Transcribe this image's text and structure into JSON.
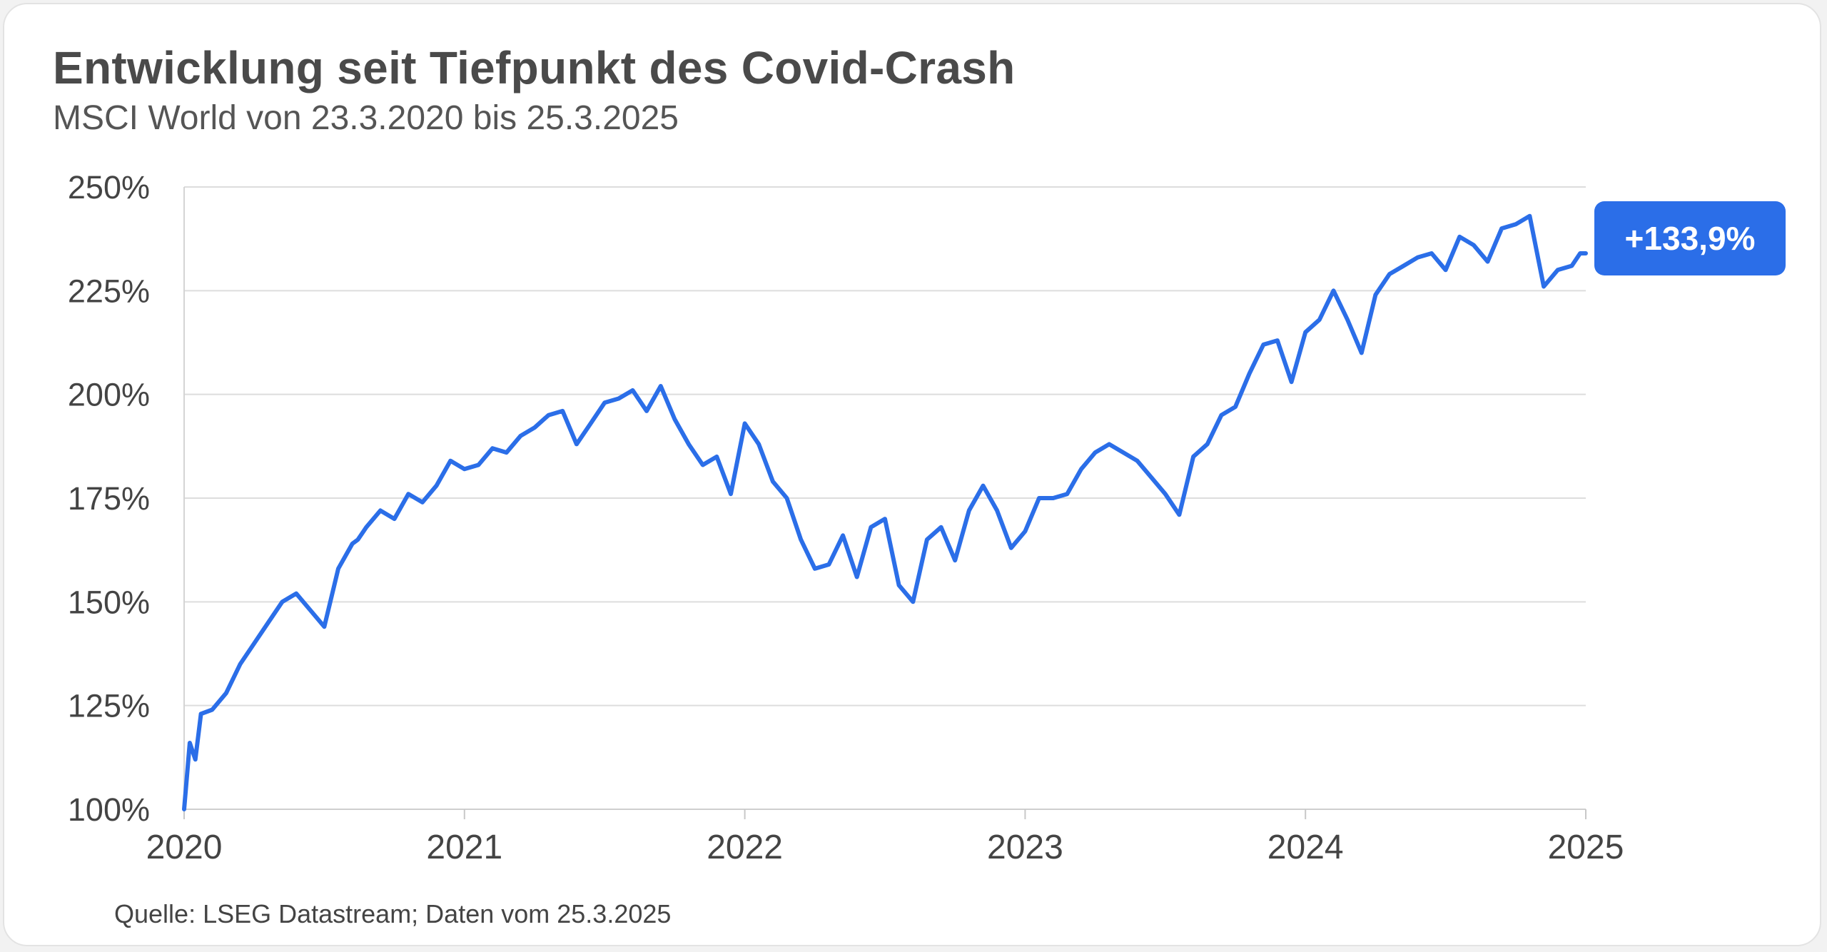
{
  "colors": {
    "line": "#2b6ee8",
    "callout_bg": "#2b6ee8",
    "grid": "#dddddd",
    "text": "#444444",
    "title": "#4a4a4a"
  },
  "chart_data": {
    "type": "line",
    "title": "Entwicklung seit Tiefpunkt des Covid-Crash",
    "subtitle": "MSCI World von 23.3.2020 bis 25.3.2025",
    "xlabel": "",
    "ylabel": "",
    "source": "Quelle: LSEG Datastream; Daten vom 25.3.2025",
    "callout": "+133,9%",
    "xlim": [
      2020,
      2025
    ],
    "ylim": [
      100,
      250
    ],
    "x_ticks": [
      "2020",
      "2021",
      "2022",
      "2023",
      "2024",
      "2025"
    ],
    "y_ticks": [
      "100%",
      "125%",
      "150%",
      "175%",
      "200%",
      "225%",
      "250%"
    ],
    "y_tick_values": [
      100,
      125,
      150,
      175,
      200,
      225,
      250
    ],
    "grid": "horizontal",
    "series": [
      {
        "x": [
          2020.0,
          2020.02,
          2020.04,
          2020.06,
          2020.1,
          2020.15,
          2020.2,
          2020.25,
          2020.3,
          2020.35,
          2020.4,
          2020.45,
          2020.5,
          2020.55,
          2020.6,
          2020.62,
          2020.65,
          2020.7,
          2020.75,
          2020.8,
          2020.85,
          2020.9,
          2020.95,
          2021.0,
          2021.05,
          2021.1,
          2021.15,
          2021.2,
          2021.25,
          2021.3,
          2021.35,
          2021.4,
          2021.45,
          2021.5,
          2021.55,
          2021.6,
          2021.65,
          2021.7,
          2021.75,
          2021.8,
          2021.85,
          2021.9,
          2021.95,
          2022.0,
          2022.05,
          2022.1,
          2022.15,
          2022.2,
          2022.25,
          2022.3,
          2022.35,
          2022.4,
          2022.45,
          2022.5,
          2022.55,
          2022.6,
          2022.65,
          2022.7,
          2022.75,
          2022.8,
          2022.85,
          2022.9,
          2022.95,
          2023.0,
          2023.05,
          2023.1,
          2023.15,
          2023.2,
          2023.25,
          2023.3,
          2023.35,
          2023.4,
          2023.45,
          2023.5,
          2023.55,
          2023.6,
          2023.65,
          2023.7,
          2023.75,
          2023.8,
          2023.85,
          2023.9,
          2023.95,
          2024.0,
          2024.05,
          2024.1,
          2024.15,
          2024.2,
          2024.25,
          2024.3,
          2024.35,
          2024.4,
          2024.45,
          2024.5,
          2024.55,
          2024.6,
          2024.65,
          2024.7,
          2024.75,
          2024.8,
          2024.85,
          2024.9,
          2024.95,
          2024.98,
          2025.0
        ],
        "values": [
          100,
          116,
          112,
          123,
          124,
          128,
          135,
          140,
          145,
          150,
          152,
          148,
          144,
          158,
          164,
          165,
          168,
          172,
          170,
          176,
          174,
          178,
          184,
          182,
          183,
          187,
          186,
          190,
          192,
          195,
          196,
          188,
          193,
          198,
          199,
          201,
          196,
          202,
          194,
          188,
          183,
          185,
          176,
          193,
          188,
          179,
          175,
          165,
          158,
          159,
          166,
          156,
          168,
          170,
          154,
          150,
          165,
          168,
          160,
          172,
          178,
          172,
          163,
          167,
          175,
          175,
          176,
          182,
          186,
          188,
          186,
          184,
          180,
          176,
          171,
          185,
          188,
          195,
          197,
          205,
          212,
          213,
          203,
          215,
          218,
          225,
          218,
          210,
          224,
          229,
          231,
          233,
          234,
          230,
          238,
          236,
          232,
          240,
          241,
          243,
          226,
          230,
          231,
          234,
          234
        ]
      }
    ]
  }
}
